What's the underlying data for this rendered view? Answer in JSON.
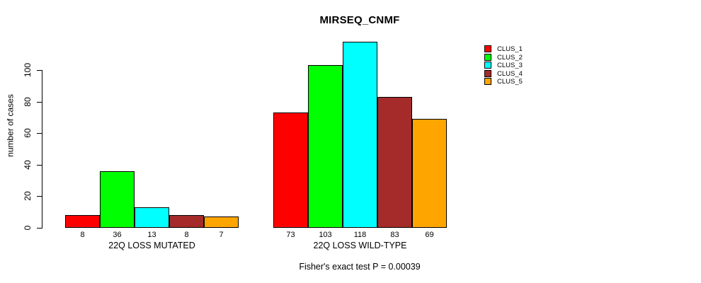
{
  "chart_data": {
    "type": "bar",
    "title": "MIRSEQ_CNMF",
    "xlabel": "",
    "ylabel": "number of cases",
    "footnote": "Fisher's exact test P = 0.00039",
    "ylim": [
      0,
      120
    ],
    "yticks": [
      0,
      20,
      40,
      60,
      80,
      100
    ],
    "grid": false,
    "legend_position": "right-of-plot-top",
    "bar_value_labels": true,
    "categories": [
      "22Q LOSS MUTATED",
      "22Q LOSS WILD-TYPE"
    ],
    "series": [
      {
        "name": "CLUS_1",
        "color": "#FF0000",
        "values": [
          8,
          73
        ]
      },
      {
        "name": "CLUS_2",
        "color": "#00FF00",
        "values": [
          36,
          103
        ]
      },
      {
        "name": "CLUS_3",
        "color": "#00FFFF",
        "values": [
          13,
          118
        ]
      },
      {
        "name": "CLUS_4",
        "color": "#A52A2A",
        "values": [
          8,
          83
        ]
      },
      {
        "name": "CLUS_5",
        "color": "#FFA500",
        "values": [
          7,
          69
        ]
      }
    ]
  }
}
